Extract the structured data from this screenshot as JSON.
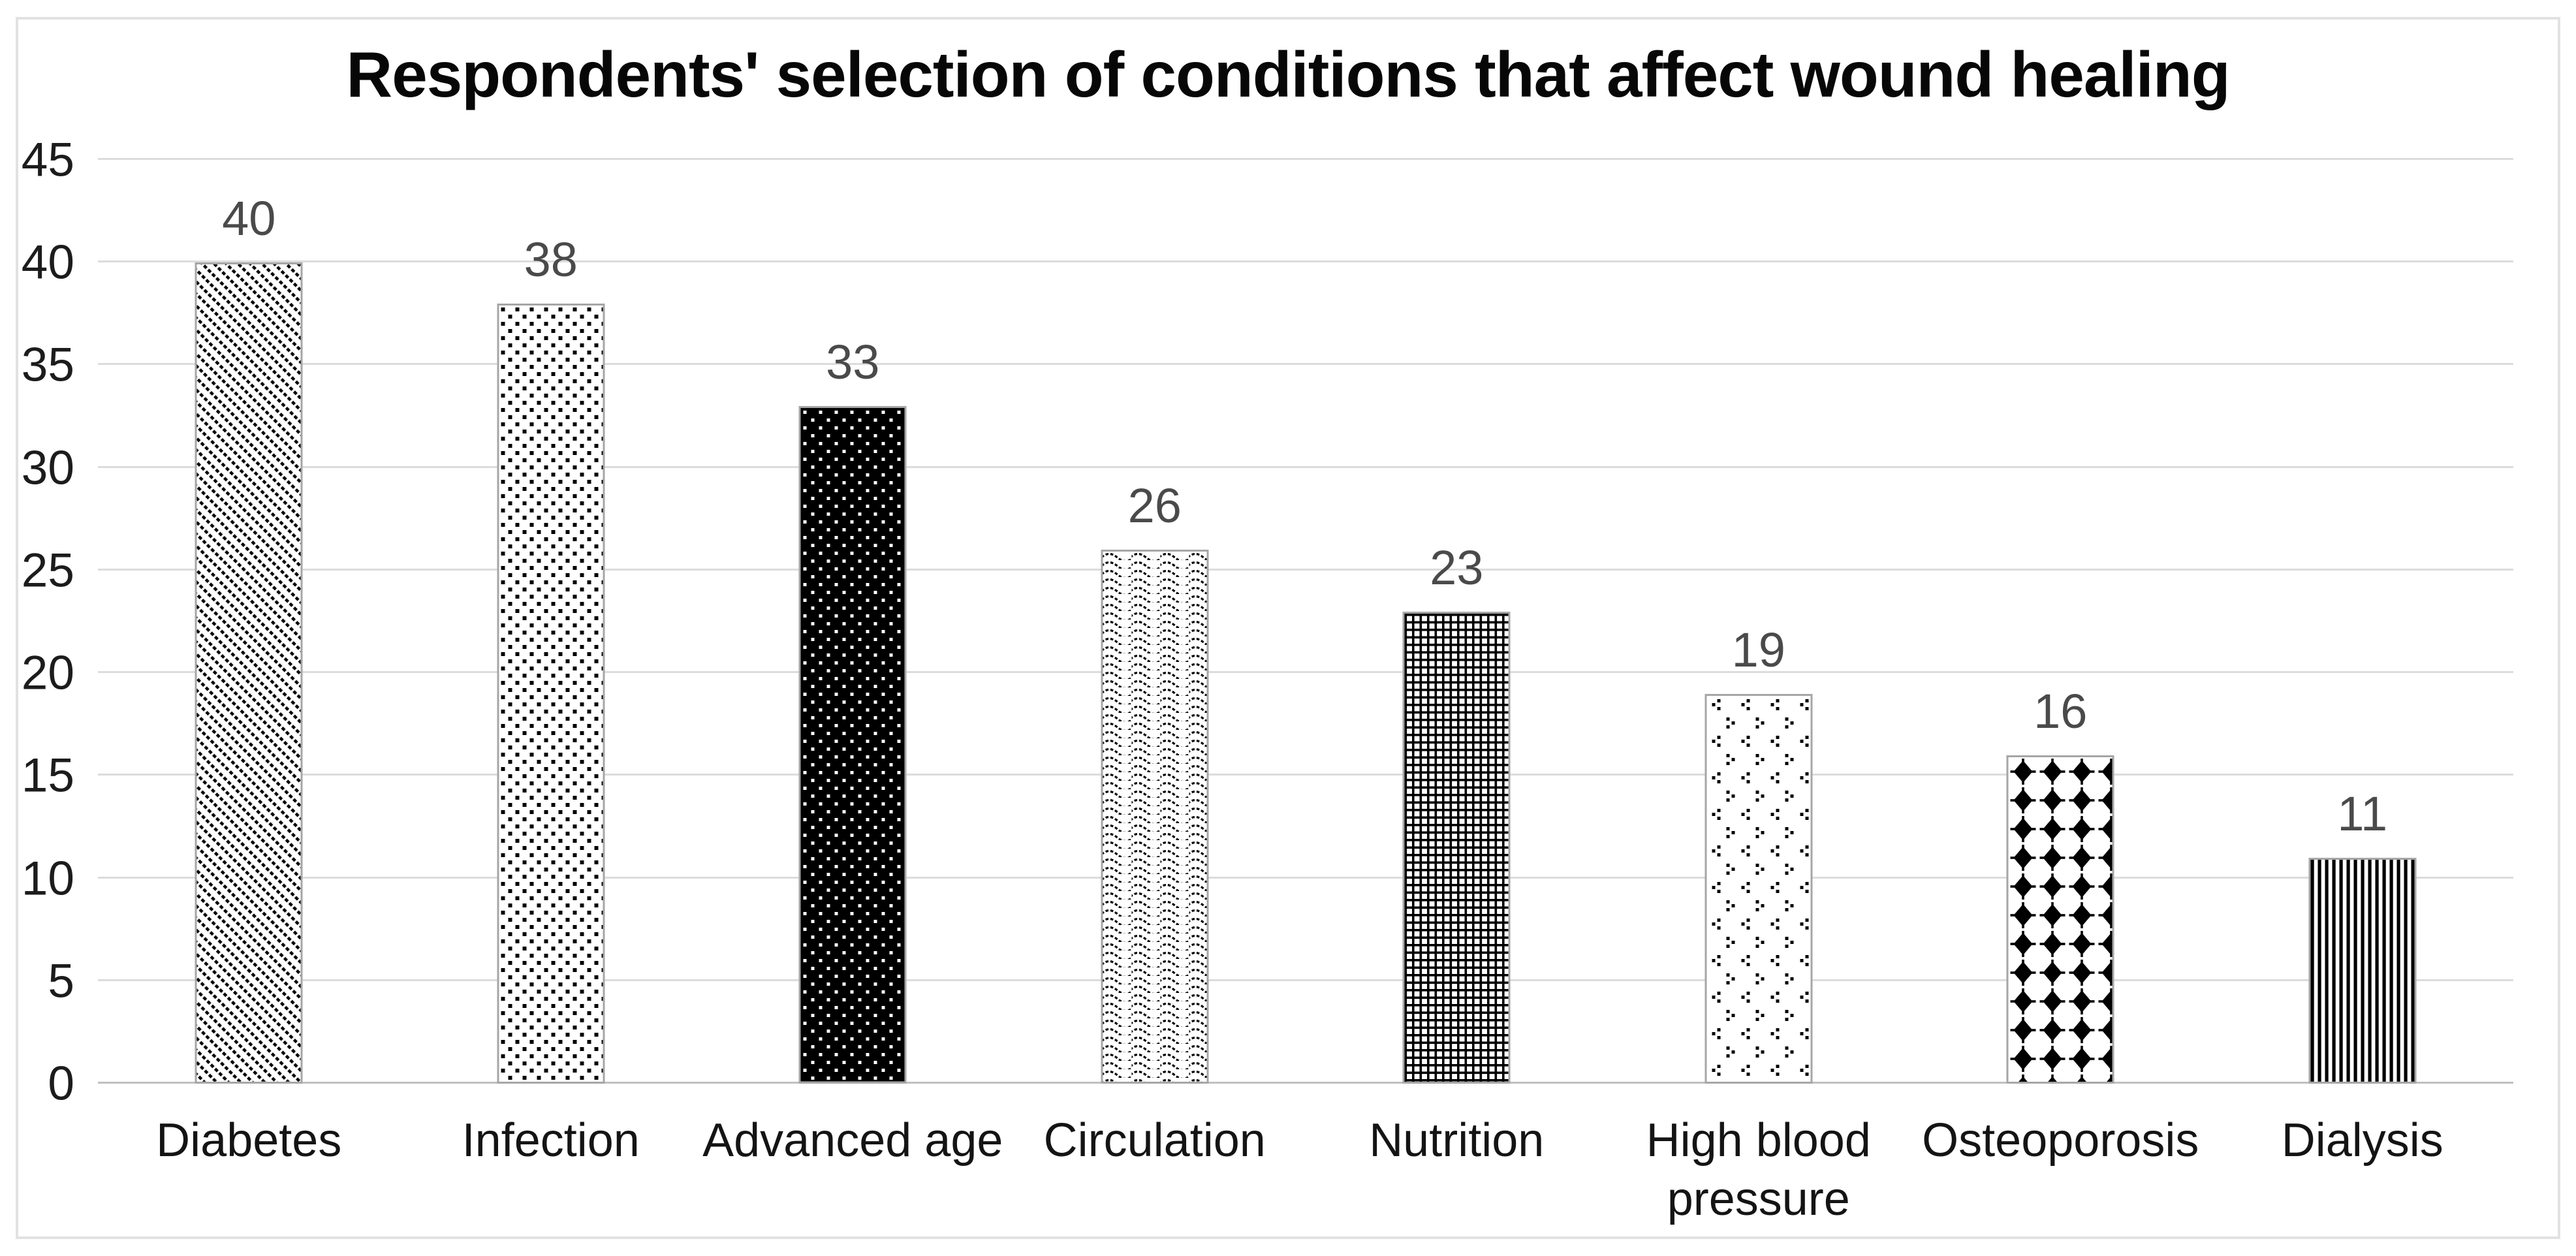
{
  "title": "Respondents' selection of conditions that affect wound healing",
  "chart_data": {
    "type": "bar",
    "title": "Respondents' selection of conditions that affect wound healing",
    "categories": [
      "Diabetes",
      "Infection",
      "Advanced age",
      "Circulation",
      "Nutrition",
      "High blood pressure",
      "Osteoporosis",
      "Dialysis"
    ],
    "values": [
      40,
      38,
      33,
      26,
      23,
      19,
      16,
      11
    ],
    "data_labels": [
      "40",
      "38",
      "33",
      "26",
      "23",
      "19",
      "16",
      "11"
    ],
    "bar_patterns": [
      "diagonal-dashed-stripes",
      "black-dot-grid",
      "white-dots-on-black",
      "wavy-lines",
      "square-mesh",
      "chevron-dots",
      "diamond-grid",
      "vertical-stripes"
    ],
    "xlabel": "",
    "ylabel": "",
    "ylim": [
      0,
      45
    ],
    "yticks": [
      0,
      5,
      10,
      15,
      20,
      25,
      30,
      35,
      40,
      45
    ],
    "grid": true,
    "legend": "none",
    "colors": {
      "pattern_foreground": "#000000",
      "bar_background": "#ffffff",
      "bar_outline": "#a6a6a6",
      "gridline": "#dcdcdc",
      "axis_line": "#c0c0c0",
      "value_label": "#4a4a4a",
      "tick_label": "#1c1c1c",
      "category_label": "#141414",
      "title": "#070707",
      "chart_border": "#e2e2e2",
      "background": "#ffffff"
    }
  }
}
